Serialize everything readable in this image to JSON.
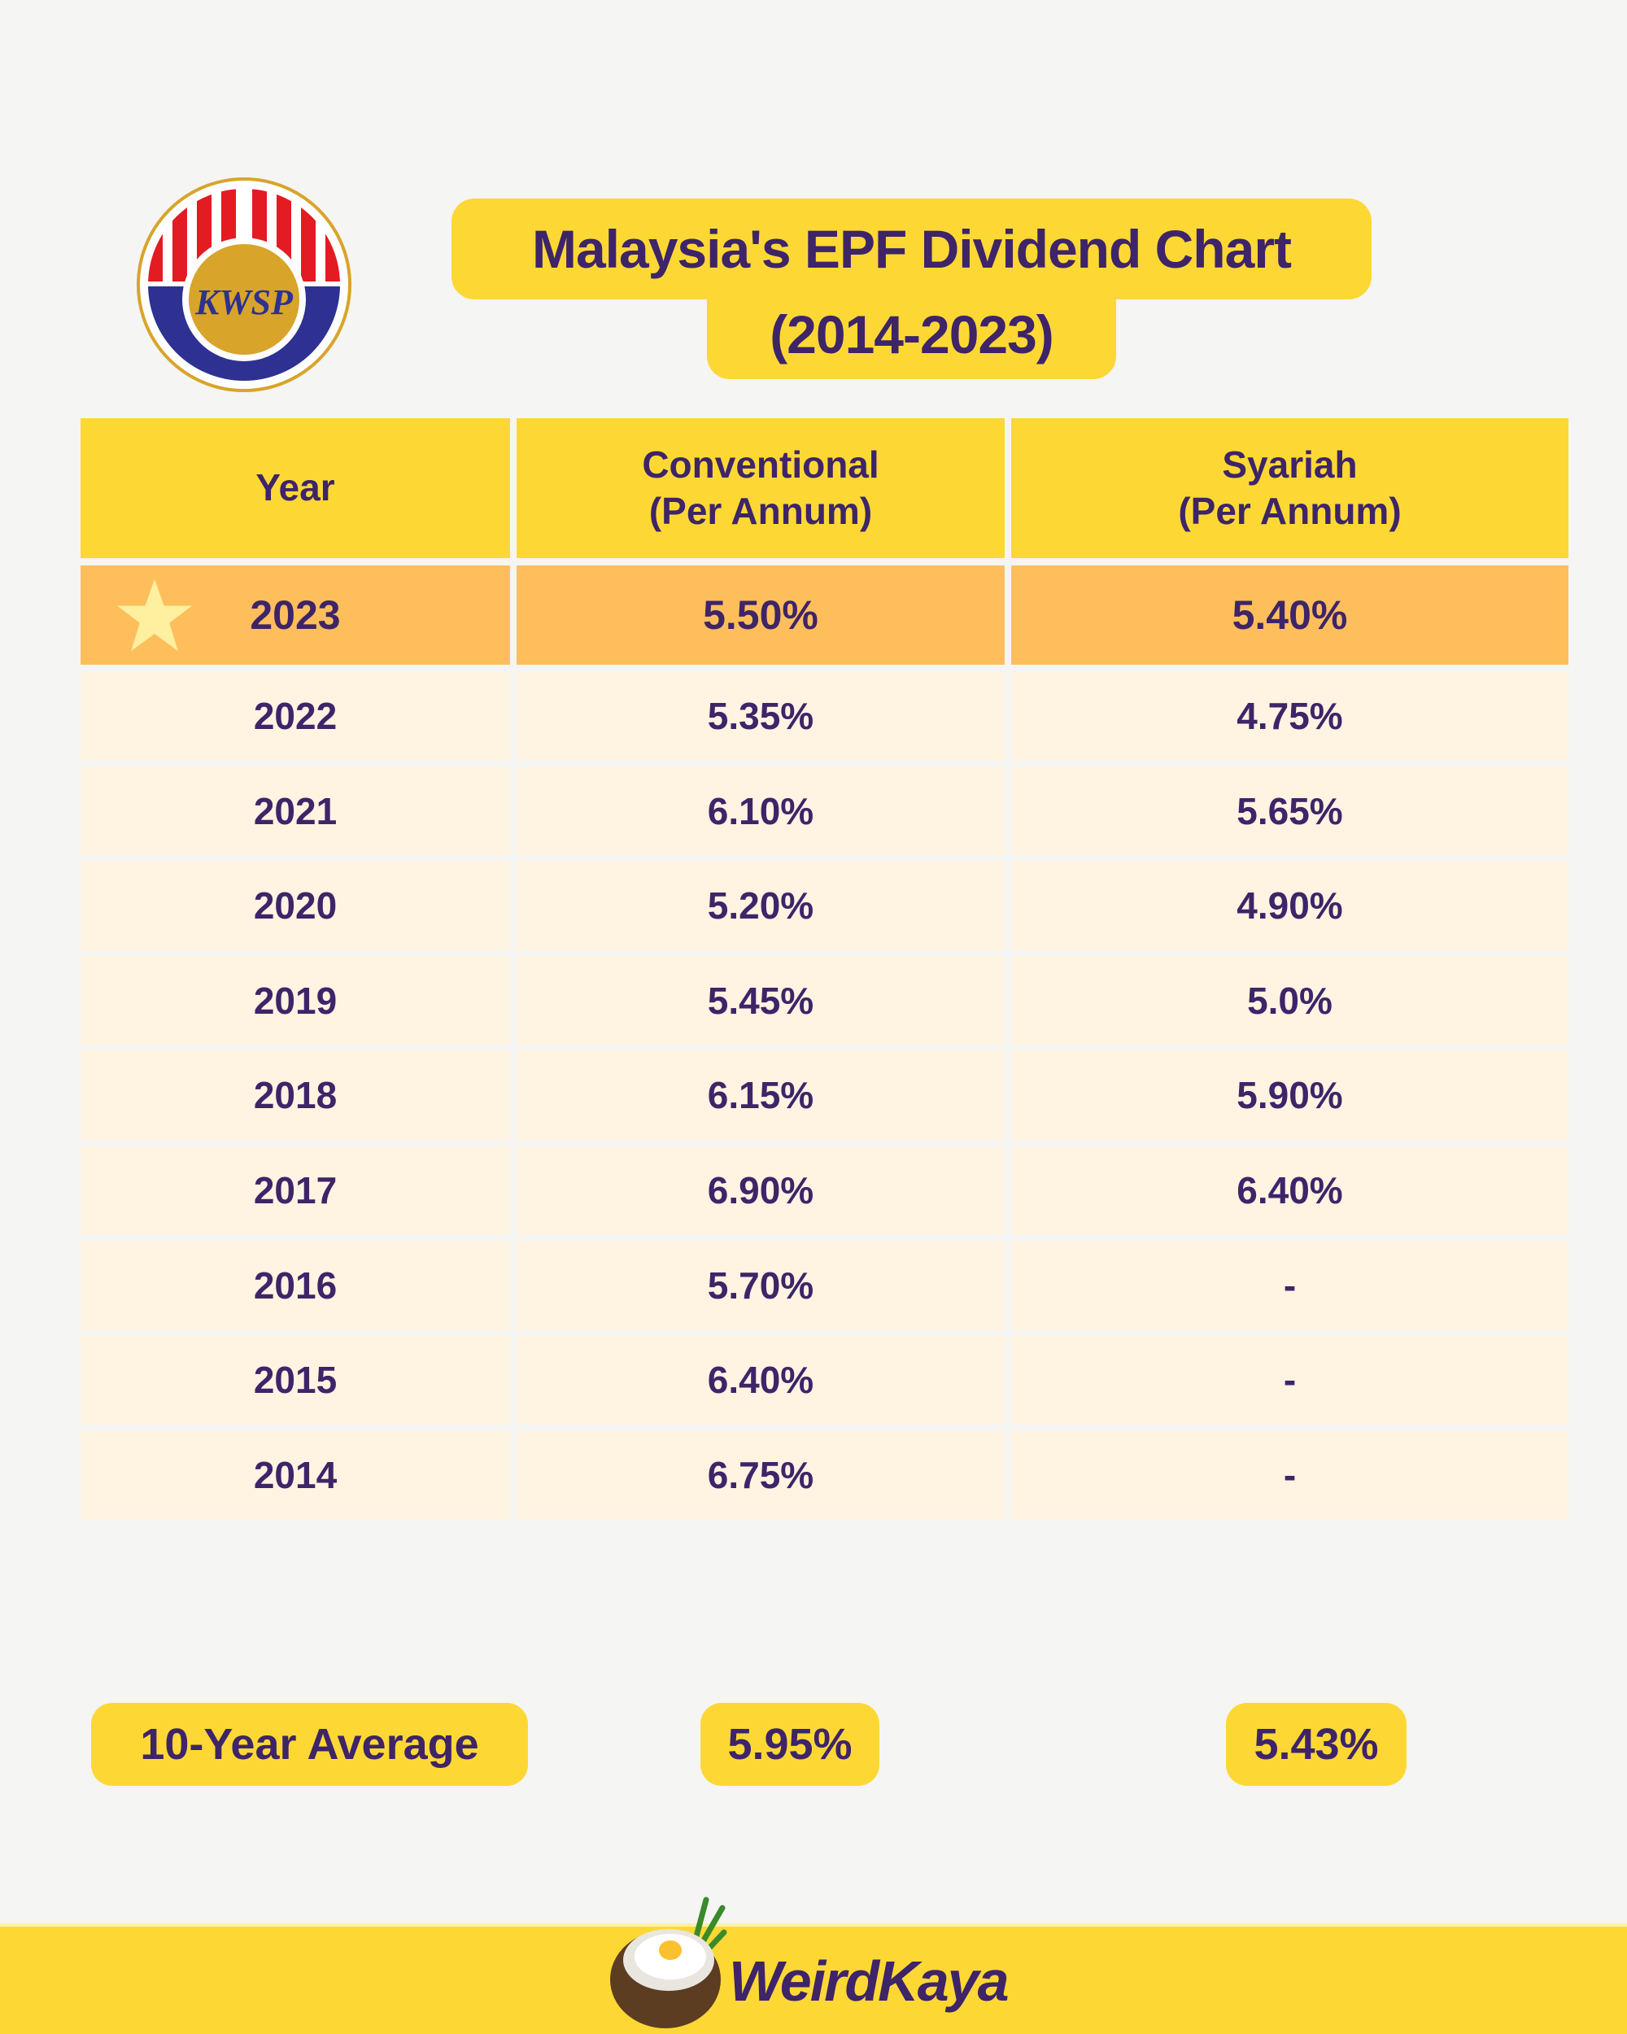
{
  "logo": {
    "text": "KWSP",
    "colors": {
      "red": "#e31b23",
      "blue": "#2e3192",
      "gold": "#d8a42a"
    }
  },
  "title": {
    "line1": "Malaysia's EPF Dividend Chart",
    "line2": "(2014-2023)"
  },
  "table": {
    "headers": {
      "year": "Year",
      "conventional": "Conventional\n(Per Annum)",
      "syariah": "Syariah\n(Per Annum)"
    },
    "highlight": {
      "year": "2023",
      "conventional": "5.50%",
      "syariah": "5.40%",
      "icon": "star-icon"
    },
    "rows": [
      {
        "year": "2022",
        "conventional": "5.35%",
        "syariah": "4.75%"
      },
      {
        "year": "2021",
        "conventional": "6.10%",
        "syariah": "5.65%"
      },
      {
        "year": "2020",
        "conventional": "5.20%",
        "syariah": "4.90%"
      },
      {
        "year": "2019",
        "conventional": "5.45%",
        "syariah": "5.0%"
      },
      {
        "year": "2018",
        "conventional": "6.15%",
        "syariah": "5.90%"
      },
      {
        "year": "2017",
        "conventional": "6.90%",
        "syariah": "6.40%"
      },
      {
        "year": "2016",
        "conventional": "5.70%",
        "syariah": "-"
      },
      {
        "year": "2015",
        "conventional": "6.40%",
        "syariah": "-"
      },
      {
        "year": "2014",
        "conventional": "6.75%",
        "syariah": "-"
      }
    ]
  },
  "average": {
    "label": "10-Year Average",
    "conventional": "5.95%",
    "syariah": "5.43%"
  },
  "footer": {
    "brand": "WeirdKaya"
  },
  "colors": {
    "yellow": "#fdd835",
    "highlight": "#ffbe5c",
    "row": "#fff4e2",
    "text": "#3e2468",
    "background": "#f5f5f4"
  }
}
